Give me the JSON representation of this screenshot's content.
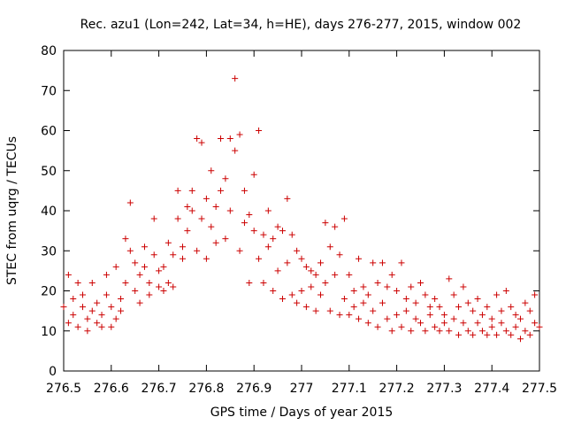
{
  "chart_data": {
    "type": "scatter",
    "title": "Rec. azu1 (Lon=242, Lat=34, h=HE), days 276-277, 2015, window 002",
    "xlabel": "GPS time / Days of year 2015",
    "ylabel": "STEC from uqrg / TECUs",
    "xlim": [
      276.5,
      277.5
    ],
    "ylim": [
      0,
      80
    ],
    "xticks": [
      276.5,
      276.6,
      276.7,
      276.8,
      276.9,
      277.0,
      277.1,
      277.2,
      277.3,
      277.4,
      277.5
    ],
    "xtick_labels": [
      "276.5",
      "276.6",
      "276.7",
      "276.8",
      "276.9",
      "277",
      "277.1",
      "277.2",
      "277.3",
      "277.4",
      "277.5"
    ],
    "yticks": [
      0,
      10,
      20,
      30,
      40,
      50,
      60,
      70,
      80
    ],
    "ytick_labels": [
      "0",
      "10",
      "20",
      "30",
      "40",
      "50",
      "60",
      "70",
      "80"
    ],
    "grid": false,
    "marker": "+",
    "color": "#cc0000",
    "series": [
      {
        "points": [
          [
            276.5,
            16
          ],
          [
            276.51,
            24
          ],
          [
            276.51,
            12
          ],
          [
            276.52,
            18
          ],
          [
            276.52,
            14
          ],
          [
            276.53,
            22
          ],
          [
            276.53,
            11
          ],
          [
            276.54,
            16
          ],
          [
            276.54,
            19
          ],
          [
            276.55,
            13
          ],
          [
            276.55,
            10
          ],
          [
            276.56,
            15
          ],
          [
            276.56,
            22
          ],
          [
            276.57,
            12
          ],
          [
            276.57,
            17
          ],
          [
            276.58,
            11
          ],
          [
            276.58,
            14
          ],
          [
            276.59,
            24
          ],
          [
            276.59,
            19
          ],
          [
            276.6,
            16
          ],
          [
            276.6,
            11
          ],
          [
            276.61,
            26
          ],
          [
            276.61,
            13
          ],
          [
            276.62,
            18
          ],
          [
            276.62,
            15
          ],
          [
            276.63,
            33
          ],
          [
            276.63,
            22
          ],
          [
            276.64,
            42
          ],
          [
            276.64,
            30
          ],
          [
            276.65,
            27
          ],
          [
            276.65,
            20
          ],
          [
            276.66,
            24
          ],
          [
            276.66,
            17
          ],
          [
            276.67,
            31
          ],
          [
            276.67,
            26
          ],
          [
            276.68,
            22
          ],
          [
            276.68,
            19
          ],
          [
            276.69,
            38
          ],
          [
            276.69,
            29
          ],
          [
            276.7,
            21
          ],
          [
            276.7,
            25
          ],
          [
            276.71,
            26
          ],
          [
            276.71,
            20
          ],
          [
            276.72,
            32
          ],
          [
            276.72,
            22
          ],
          [
            276.73,
            29
          ],
          [
            276.73,
            21
          ],
          [
            276.74,
            38
          ],
          [
            276.74,
            45
          ],
          [
            276.75,
            31
          ],
          [
            276.75,
            28
          ],
          [
            276.76,
            41
          ],
          [
            276.76,
            35
          ],
          [
            276.77,
            45
          ],
          [
            276.77,
            40
          ],
          [
            276.78,
            58
          ],
          [
            276.78,
            30
          ],
          [
            276.79,
            57
          ],
          [
            276.79,
            38
          ],
          [
            276.8,
            43
          ],
          [
            276.8,
            28
          ],
          [
            276.81,
            50
          ],
          [
            276.81,
            36
          ],
          [
            276.82,
            41
          ],
          [
            276.82,
            32
          ],
          [
            276.83,
            58
          ],
          [
            276.83,
            45
          ],
          [
            276.84,
            48
          ],
          [
            276.84,
            33
          ],
          [
            276.85,
            58
          ],
          [
            276.85,
            40
          ],
          [
            276.86,
            73
          ],
          [
            276.86,
            55
          ],
          [
            276.87,
            59
          ],
          [
            276.87,
            30
          ],
          [
            276.88,
            45
          ],
          [
            276.88,
            37
          ],
          [
            276.89,
            39
          ],
          [
            276.89,
            22
          ],
          [
            276.9,
            49
          ],
          [
            276.9,
            35
          ],
          [
            276.91,
            60
          ],
          [
            276.91,
            28
          ],
          [
            276.92,
            34
          ],
          [
            276.92,
            22
          ],
          [
            276.93,
            40
          ],
          [
            276.93,
            31
          ],
          [
            276.94,
            33
          ],
          [
            276.94,
            20
          ],
          [
            276.95,
            36
          ],
          [
            276.95,
            25
          ],
          [
            276.96,
            35
          ],
          [
            276.96,
            18
          ],
          [
            276.97,
            43
          ],
          [
            276.97,
            27
          ],
          [
            276.98,
            34
          ],
          [
            276.98,
            19
          ],
          [
            276.99,
            30
          ],
          [
            276.99,
            17
          ],
          [
            277.0,
            28
          ],
          [
            277.0,
            20
          ],
          [
            277.01,
            26
          ],
          [
            277.01,
            16
          ],
          [
            277.02,
            25
          ],
          [
            277.02,
            21
          ],
          [
            277.03,
            24
          ],
          [
            277.03,
            15
          ],
          [
            277.04,
            27
          ],
          [
            277.04,
            19
          ],
          [
            277.05,
            37
          ],
          [
            277.05,
            22
          ],
          [
            277.06,
            31
          ],
          [
            277.06,
            15
          ],
          [
            277.07,
            36
          ],
          [
            277.07,
            24
          ],
          [
            277.08,
            29
          ],
          [
            277.08,
            14
          ],
          [
            277.09,
            38
          ],
          [
            277.09,
            18
          ],
          [
            277.1,
            24
          ],
          [
            277.1,
            14
          ],
          [
            277.11,
            20
          ],
          [
            277.11,
            16
          ],
          [
            277.12,
            28
          ],
          [
            277.12,
            13
          ],
          [
            277.13,
            21
          ],
          [
            277.13,
            17
          ],
          [
            277.14,
            19
          ],
          [
            277.14,
            12
          ],
          [
            277.15,
            27
          ],
          [
            277.15,
            15
          ],
          [
            277.16,
            22
          ],
          [
            277.16,
            11
          ],
          [
            277.17,
            27
          ],
          [
            277.17,
            17
          ],
          [
            277.18,
            21
          ],
          [
            277.18,
            13
          ],
          [
            277.19,
            24
          ],
          [
            277.19,
            10
          ],
          [
            277.2,
            20
          ],
          [
            277.2,
            14
          ],
          [
            277.21,
            27
          ],
          [
            277.21,
            11
          ],
          [
            277.22,
            18
          ],
          [
            277.22,
            15
          ],
          [
            277.23,
            21
          ],
          [
            277.23,
            10
          ],
          [
            277.24,
            17
          ],
          [
            277.24,
            13
          ],
          [
            277.25,
            22
          ],
          [
            277.25,
            12
          ],
          [
            277.26,
            19
          ],
          [
            277.26,
            10
          ],
          [
            277.27,
            16
          ],
          [
            277.27,
            14
          ],
          [
            277.28,
            18
          ],
          [
            277.28,
            11
          ],
          [
            277.29,
            16
          ],
          [
            277.29,
            10
          ],
          [
            277.3,
            14
          ],
          [
            277.3,
            12
          ],
          [
            277.31,
            23
          ],
          [
            277.31,
            10
          ],
          [
            277.32,
            19
          ],
          [
            277.32,
            13
          ],
          [
            277.33,
            16
          ],
          [
            277.33,
            9
          ],
          [
            277.34,
            21
          ],
          [
            277.34,
            12
          ],
          [
            277.35,
            17
          ],
          [
            277.35,
            10
          ],
          [
            277.36,
            15
          ],
          [
            277.36,
            9
          ],
          [
            277.37,
            18
          ],
          [
            277.37,
            12
          ],
          [
            277.38,
            14
          ],
          [
            277.38,
            10
          ],
          [
            277.39,
            16
          ],
          [
            277.39,
            9
          ],
          [
            277.4,
            13
          ],
          [
            277.4,
            11
          ],
          [
            277.41,
            19
          ],
          [
            277.41,
            9
          ],
          [
            277.42,
            15
          ],
          [
            277.42,
            12
          ],
          [
            277.43,
            20
          ],
          [
            277.43,
            10
          ],
          [
            277.44,
            16
          ],
          [
            277.44,
            9
          ],
          [
            277.45,
            14
          ],
          [
            277.45,
            11
          ],
          [
            277.46,
            13
          ],
          [
            277.46,
            8
          ],
          [
            277.47,
            17
          ],
          [
            277.47,
            10
          ],
          [
            277.48,
            15
          ],
          [
            277.48,
            9
          ],
          [
            277.49,
            19
          ],
          [
            277.49,
            12
          ],
          [
            277.5,
            11
          ]
        ]
      }
    ]
  }
}
